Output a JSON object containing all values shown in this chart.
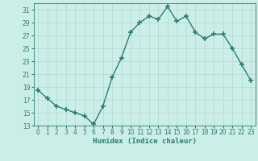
{
  "x": [
    0,
    1,
    2,
    3,
    4,
    5,
    6,
    7,
    8,
    9,
    10,
    11,
    12,
    13,
    14,
    15,
    16,
    17,
    18,
    19,
    20,
    21,
    22,
    23
  ],
  "y": [
    18.5,
    17.2,
    16.0,
    15.5,
    15.0,
    14.5,
    13.2,
    16.0,
    20.5,
    23.5,
    27.5,
    29.0,
    30.0,
    29.5,
    31.5,
    29.2,
    30.0,
    27.5,
    26.5,
    27.2,
    27.2,
    25.0,
    22.5,
    20.0
  ],
  "line_color": "#2e7d6e",
  "marker": "+",
  "markersize": 4,
  "markeredgewidth": 1.2,
  "linewidth": 1.0,
  "bg_color": "#cceee8",
  "grid_color": "#b0d8d2",
  "xlabel": "Humidex (Indice chaleur)",
  "xlim": [
    -0.5,
    23.5
  ],
  "ylim": [
    13,
    32
  ],
  "yticks": [
    13,
    15,
    17,
    19,
    21,
    23,
    25,
    27,
    29,
    31
  ],
  "xticks": [
    0,
    1,
    2,
    3,
    4,
    5,
    6,
    7,
    8,
    9,
    10,
    11,
    12,
    13,
    14,
    15,
    16,
    17,
    18,
    19,
    20,
    21,
    22,
    23
  ],
  "tick_fontsize": 5.5,
  "label_fontsize": 6.5
}
